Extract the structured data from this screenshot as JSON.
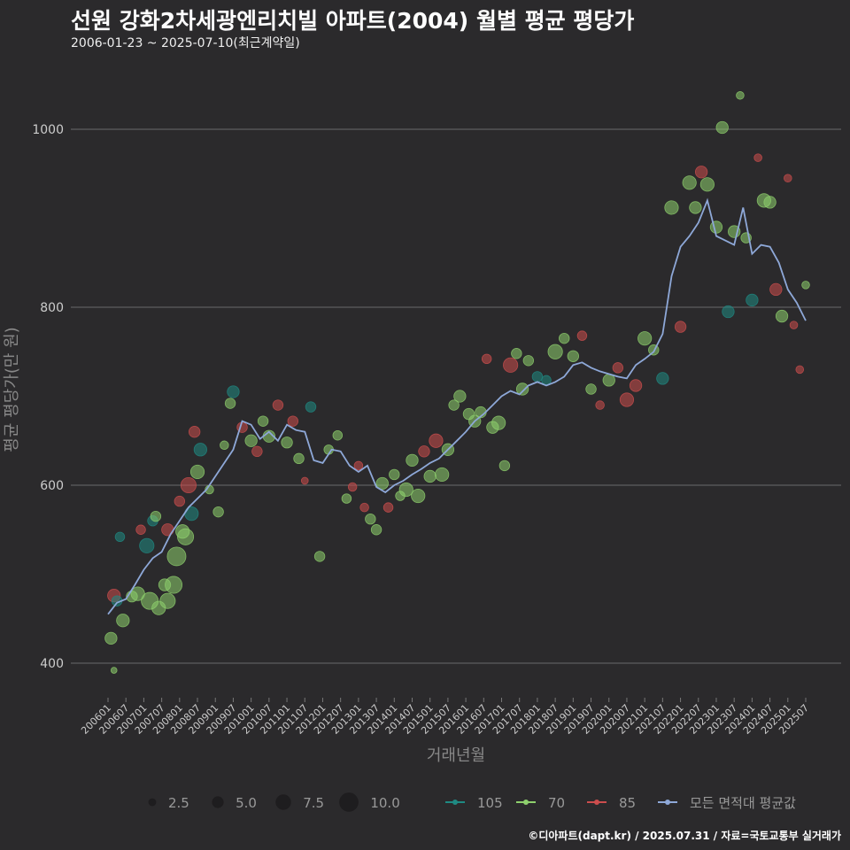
{
  "chart_data": {
    "type": "scatter",
    "title": "선원 강화2차세광엔리치빌 아파트(2004) 월별 평균 평당가",
    "subtitle": "2006-01-23 ~ 2025-07-10(최근계약일)",
    "xlabel": "거래년월",
    "ylabel": "평균 평당가(만 원)",
    "ylim": [
      365,
      1065
    ],
    "yticks": [
      400,
      600,
      800,
      1000
    ],
    "grid": true,
    "legend_position": "bottom",
    "x_tick_labels": [
      "200601",
      "200607",
      "200701",
      "200707",
      "200801",
      "200807",
      "200901",
      "200907",
      "201001",
      "201007",
      "201101",
      "201107",
      "201201",
      "201207",
      "201301",
      "201307",
      "201401",
      "201407",
      "201501",
      "201507",
      "201601",
      "201607",
      "201701",
      "201707",
      "201801",
      "201807",
      "201901",
      "201907",
      "202001",
      "202007",
      "202101",
      "202107",
      "202201",
      "202207",
      "202301",
      "202307",
      "202401",
      "202407",
      "202501",
      "202507"
    ],
    "size_legend": [
      {
        "label": "2.5",
        "value": 2.5
      },
      {
        "label": "5.0",
        "value": 5.0
      },
      {
        "label": "7.5",
        "value": 7.5
      },
      {
        "label": "10.0",
        "value": 10.0
      }
    ],
    "series": [
      {
        "name": "105",
        "color": "#1f8a83",
        "kind": "points"
      },
      {
        "name": "70",
        "color": "#8ed06d",
        "kind": "points"
      },
      {
        "name": "85",
        "color": "#cc4d4d",
        "kind": "points"
      },
      {
        "name": "모든 면적대 평균값",
        "color": "#8ea8d8",
        "kind": "line"
      }
    ],
    "average_line": [
      [
        "2006-01",
        455
      ],
      [
        "2006-04",
        468
      ],
      [
        "2006-07",
        472
      ],
      [
        "2006-10",
        488
      ],
      [
        "2007-01",
        505
      ],
      [
        "2007-04",
        518
      ],
      [
        "2007-07",
        525
      ],
      [
        "2007-10",
        545
      ],
      [
        "2008-01",
        560
      ],
      [
        "2008-04",
        575
      ],
      [
        "2008-07",
        585
      ],
      [
        "2008-10",
        595
      ],
      [
        "2009-01",
        610
      ],
      [
        "2009-04",
        625
      ],
      [
        "2009-07",
        640
      ],
      [
        "2009-10",
        672
      ],
      [
        "2010-01",
        668
      ],
      [
        "2010-04",
        652
      ],
      [
        "2010-07",
        660
      ],
      [
        "2010-10",
        650
      ],
      [
        "2011-01",
        668
      ],
      [
        "2011-04",
        662
      ],
      [
        "2011-07",
        660
      ],
      [
        "2011-10",
        628
      ],
      [
        "2012-01",
        625
      ],
      [
        "2012-04",
        640
      ],
      [
        "2012-07",
        638
      ],
      [
        "2012-10",
        622
      ],
      [
        "2013-01",
        615
      ],
      [
        "2013-04",
        622
      ],
      [
        "2013-07",
        598
      ],
      [
        "2013-10",
        592
      ],
      [
        "2014-01",
        600
      ],
      [
        "2014-04",
        605
      ],
      [
        "2014-07",
        612
      ],
      [
        "2014-10",
        618
      ],
      [
        "2015-01",
        625
      ],
      [
        "2015-04",
        630
      ],
      [
        "2015-07",
        640
      ],
      [
        "2015-10",
        650
      ],
      [
        "2016-01",
        660
      ],
      [
        "2016-04",
        672
      ],
      [
        "2016-07",
        680
      ],
      [
        "2016-10",
        690
      ],
      [
        "2017-01",
        700
      ],
      [
        "2017-04",
        706
      ],
      [
        "2017-07",
        702
      ],
      [
        "2017-10",
        712
      ],
      [
        "2018-01",
        716
      ],
      [
        "2018-04",
        712
      ],
      [
        "2018-07",
        716
      ],
      [
        "2018-10",
        722
      ],
      [
        "2019-01",
        735
      ],
      [
        "2019-04",
        738
      ],
      [
        "2019-07",
        732
      ],
      [
        "2019-10",
        728
      ],
      [
        "2020-01",
        725
      ],
      [
        "2020-04",
        722
      ],
      [
        "2020-07",
        720
      ],
      [
        "2020-10",
        735
      ],
      [
        "2021-01",
        742
      ],
      [
        "2021-04",
        750
      ],
      [
        "2021-07",
        770
      ],
      [
        "2021-10",
        835
      ],
      [
        "2022-01",
        868
      ],
      [
        "2022-04",
        880
      ],
      [
        "2022-07",
        895
      ],
      [
        "2022-10",
        920
      ],
      [
        "2023-01",
        880
      ],
      [
        "2023-04",
        875
      ],
      [
        "2023-07",
        870
      ],
      [
        "2023-10",
        912
      ],
      [
        "2024-01",
        860
      ],
      [
        "2024-04",
        870
      ],
      [
        "2024-07",
        868
      ],
      [
        "2024-10",
        850
      ],
      [
        "2025-01",
        820
      ],
      [
        "2025-04",
        805
      ],
      [
        "2025-07",
        785
      ]
    ],
    "points": [
      [
        "2006-02",
        428,
        5.0,
        "70"
      ],
      [
        "2006-03",
        392,
        1.5,
        "70"
      ],
      [
        "2006-03",
        476,
        5.5,
        "85"
      ],
      [
        "2006-04",
        470,
        4.0,
        "105"
      ],
      [
        "2006-05",
        542,
        3.5,
        "105"
      ],
      [
        "2006-06",
        448,
        5.5,
        "70"
      ],
      [
        "2006-09",
        475,
        4.5,
        "70"
      ],
      [
        "2006-11",
        478,
        6.0,
        "70"
      ],
      [
        "2006-12",
        550,
        3.5,
        "85"
      ],
      [
        "2007-02",
        532,
        6.5,
        "105"
      ],
      [
        "2007-03",
        470,
        8.0,
        "70"
      ],
      [
        "2007-04",
        560,
        4.0,
        "105"
      ],
      [
        "2007-05",
        565,
        4.0,
        "70"
      ],
      [
        "2007-06",
        462,
        6.0,
        "70"
      ],
      [
        "2007-08",
        488,
        5.0,
        "70"
      ],
      [
        "2007-09",
        470,
        7.0,
        "70"
      ],
      [
        "2007-09",
        550,
        5.0,
        "85"
      ],
      [
        "2007-11",
        488,
        8.0,
        "70"
      ],
      [
        "2007-12",
        520,
        9.0,
        "70"
      ],
      [
        "2008-01",
        582,
        4.0,
        "85"
      ],
      [
        "2008-02",
        548,
        6.0,
        "70"
      ],
      [
        "2008-03",
        542,
        7.5,
        "70"
      ],
      [
        "2008-04",
        600,
        7.0,
        "85"
      ],
      [
        "2008-05",
        568,
        6.0,
        "105"
      ],
      [
        "2008-06",
        660,
        4.5,
        "85"
      ],
      [
        "2008-07",
        615,
        6.0,
        "70"
      ],
      [
        "2008-08",
        640,
        5.5,
        "105"
      ],
      [
        "2008-11",
        595,
        3.0,
        "70"
      ],
      [
        "2009-02",
        570,
        4.0,
        "70"
      ],
      [
        "2009-04",
        645,
        3.0,
        "70"
      ],
      [
        "2009-06",
        692,
        4.0,
        "70"
      ],
      [
        "2009-07",
        705,
        5.0,
        "105"
      ],
      [
        "2009-10",
        665,
        4.0,
        "85"
      ],
      [
        "2010-01",
        650,
        5.0,
        "70"
      ],
      [
        "2010-03",
        638,
        4.0,
        "85"
      ],
      [
        "2010-05",
        672,
        4.0,
        "70"
      ],
      [
        "2010-07",
        655,
        5.0,
        "70"
      ],
      [
        "2010-10",
        690,
        4.0,
        "85"
      ],
      [
        "2011-01",
        648,
        4.5,
        "70"
      ],
      [
        "2011-03",
        672,
        4.0,
        "85"
      ],
      [
        "2011-05",
        630,
        4.0,
        "70"
      ],
      [
        "2011-07",
        605,
        2.0,
        "85"
      ],
      [
        "2011-09",
        688,
        4.0,
        "105"
      ],
      [
        "2011-12",
        520,
        4.0,
        "70"
      ],
      [
        "2012-03",
        640,
        3.5,
        "70"
      ],
      [
        "2012-06",
        656,
        3.5,
        "70"
      ],
      [
        "2012-09",
        585,
        3.5,
        "70"
      ],
      [
        "2012-11",
        598,
        3.0,
        "85"
      ],
      [
        "2013-01",
        622,
        3.0,
        "85"
      ],
      [
        "2013-03",
        575,
        3.0,
        "85"
      ],
      [
        "2013-05",
        562,
        4.0,
        "70"
      ],
      [
        "2013-07",
        550,
        4.0,
        "70"
      ],
      [
        "2013-09",
        602,
        5.0,
        "70"
      ],
      [
        "2013-11",
        575,
        3.5,
        "85"
      ],
      [
        "2014-01",
        612,
        4.0,
        "70"
      ],
      [
        "2014-03",
        588,
        3.5,
        "70"
      ],
      [
        "2014-05",
        595,
        6.0,
        "70"
      ],
      [
        "2014-07",
        628,
        5.0,
        "70"
      ],
      [
        "2014-09",
        588,
        6.0,
        "70"
      ],
      [
        "2014-11",
        638,
        4.5,
        "85"
      ],
      [
        "2015-01",
        610,
        5.0,
        "70"
      ],
      [
        "2015-03",
        650,
        6.0,
        "85"
      ],
      [
        "2015-05",
        612,
        6.0,
        "70"
      ],
      [
        "2015-07",
        640,
        5.0,
        "70"
      ],
      [
        "2015-09",
        690,
        4.0,
        "70"
      ],
      [
        "2015-11",
        700,
        5.0,
        "70"
      ],
      [
        "2016-02",
        680,
        4.5,
        "70"
      ],
      [
        "2016-04",
        672,
        5.0,
        "70"
      ],
      [
        "2016-06",
        682,
        4.5,
        "70"
      ],
      [
        "2016-08",
        742,
        3.5,
        "85"
      ],
      [
        "2016-10",
        665,
        5.0,
        "70"
      ],
      [
        "2016-12",
        670,
        6.0,
        "70"
      ],
      [
        "2017-02",
        622,
        4.0,
        "70"
      ],
      [
        "2017-04",
        735,
        6.5,
        "85"
      ],
      [
        "2017-06",
        748,
        4.0,
        "70"
      ],
      [
        "2017-08",
        708,
        5.0,
        "70"
      ],
      [
        "2017-10",
        740,
        4.0,
        "70"
      ],
      [
        "2018-01",
        722,
        4.0,
        "105"
      ],
      [
        "2018-04",
        718,
        3.5,
        "105"
      ],
      [
        "2018-07",
        750,
        6.5,
        "70"
      ],
      [
        "2018-10",
        765,
        4.0,
        "70"
      ],
      [
        "2019-01",
        745,
        4.5,
        "70"
      ],
      [
        "2019-04",
        768,
        3.5,
        "85"
      ],
      [
        "2019-07",
        708,
        4.0,
        "70"
      ],
      [
        "2019-10",
        690,
        3.0,
        "85"
      ],
      [
        "2020-01",
        718,
        5.0,
        "70"
      ],
      [
        "2020-04",
        732,
        4.0,
        "85"
      ],
      [
        "2020-07",
        696,
        6.0,
        "85"
      ],
      [
        "2020-10",
        712,
        5.0,
        "85"
      ],
      [
        "2021-01",
        765,
        6.0,
        "70"
      ],
      [
        "2021-04",
        752,
        4.0,
        "70"
      ],
      [
        "2021-07",
        720,
        5.0,
        "105"
      ],
      [
        "2021-10",
        912,
        6.0,
        "70"
      ],
      [
        "2022-01",
        778,
        4.5,
        "85"
      ],
      [
        "2022-04",
        940,
        6.0,
        "70"
      ],
      [
        "2022-06",
        912,
        5.0,
        "70"
      ],
      [
        "2022-08",
        952,
        5.0,
        "85"
      ],
      [
        "2022-10",
        938,
        6.0,
        "70"
      ],
      [
        "2023-01",
        890,
        5.0,
        "70"
      ],
      [
        "2023-03",
        1002,
        5.0,
        "70"
      ],
      [
        "2023-05",
        795,
        5.0,
        "105"
      ],
      [
        "2023-07",
        885,
        5.0,
        "70"
      ],
      [
        "2023-09",
        1038,
        2.5,
        "70"
      ],
      [
        "2023-11",
        878,
        4.0,
        "70"
      ],
      [
        "2024-01",
        808,
        5.0,
        "105"
      ],
      [
        "2024-03",
        968,
        2.5,
        "85"
      ],
      [
        "2024-05",
        920,
        6.0,
        "70"
      ],
      [
        "2024-07",
        918,
        5.0,
        "70"
      ],
      [
        "2024-09",
        820,
        5.0,
        "85"
      ],
      [
        "2024-11",
        790,
        5.0,
        "70"
      ],
      [
        "2025-01",
        945,
        2.5,
        "85"
      ],
      [
        "2025-03",
        780,
        2.5,
        "85"
      ],
      [
        "2025-05",
        730,
        2.5,
        "85"
      ],
      [
        "2025-07",
        825,
        2.5,
        "70"
      ]
    ]
  },
  "caption": "©디아파트(dapt.kr) / 2025.07.31 / 자료=국토교통부 실거래가"
}
